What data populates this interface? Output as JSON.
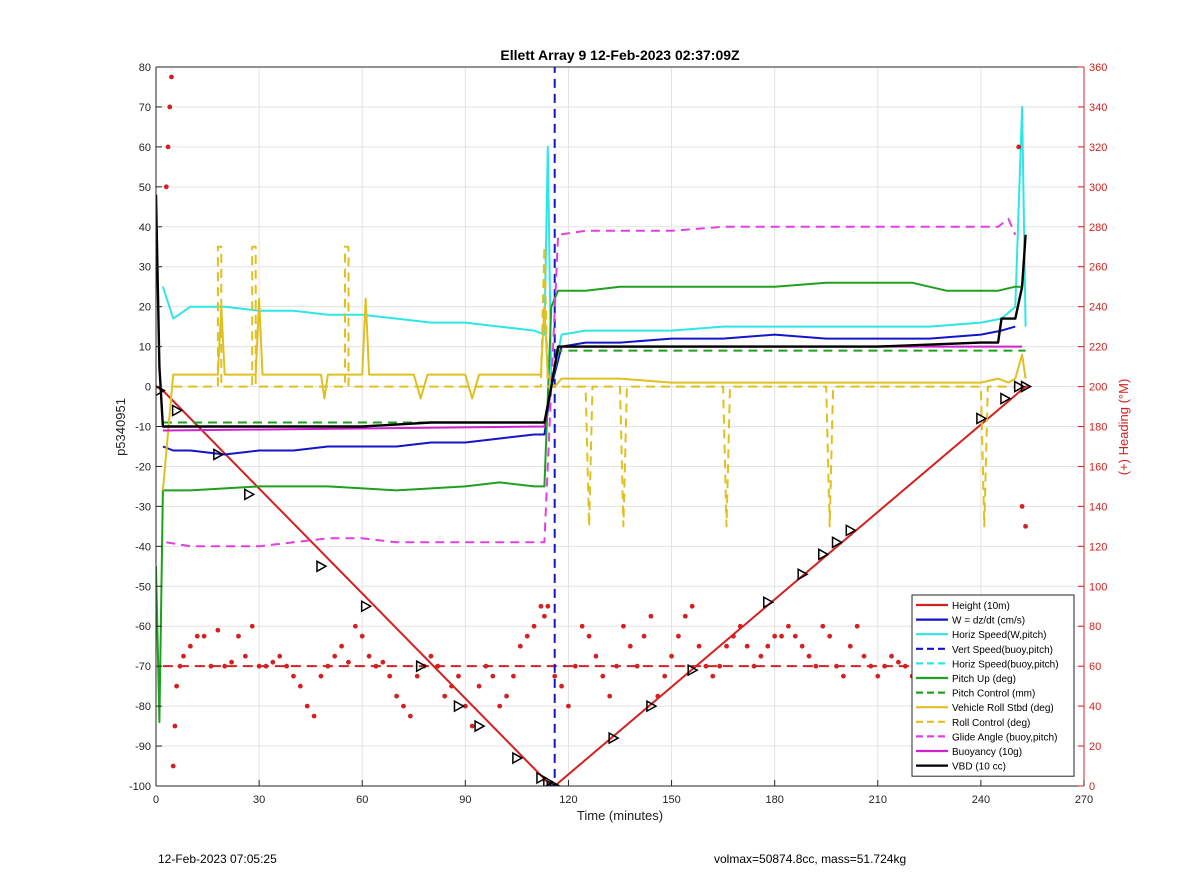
{
  "chart_data": {
    "type": "line",
    "title": "Ellett Array 9 12-Feb-2023 02:37:09Z",
    "xlabel": "Time (minutes)",
    "ylabel_left": "p5340951",
    "ylabel_right": "(+) Heading (°M)",
    "xlim": [
      0,
      270
    ],
    "ylim_left": [
      -100,
      80
    ],
    "ylim_right": [
      0,
      360
    ],
    "xticks": [
      0,
      30,
      60,
      90,
      120,
      150,
      180,
      210,
      240,
      270
    ],
    "yticks_left": [
      -100,
      -90,
      -80,
      -70,
      -60,
      -50,
      -40,
      -30,
      -20,
      -10,
      0,
      10,
      20,
      30,
      40,
      50,
      60,
      70,
      80
    ],
    "yticks_right": [
      0,
      20,
      40,
      60,
      80,
      100,
      120,
      140,
      160,
      180,
      200,
      220,
      240,
      260,
      280,
      300,
      320,
      340,
      360
    ],
    "grid": true,
    "legend_placement": "bottom-right",
    "legend": [
      {
        "label": "Height (10m)",
        "color": "#d42020",
        "style": "solid"
      },
      {
        "label": "W = dz/dt (cm/s)",
        "color": "#1414c8",
        "style": "solid"
      },
      {
        "label": "Horiz Speed(W,pitch)",
        "color": "#2ee6e6",
        "style": "solid"
      },
      {
        "label": "Vert Speed(buoy,pitch)",
        "color": "#1414c8",
        "style": "dashed"
      },
      {
        "label": "Horiz Speed(buoy,pitch)",
        "color": "#2ee6e6",
        "style": "dashed"
      },
      {
        "label": "Pitch Up (deg)",
        "color": "#1fa01f",
        "style": "solid"
      },
      {
        "label": "Pitch Control (mm)",
        "color": "#1fa01f",
        "style": "dashed"
      },
      {
        "label": "Vehicle Roll Stbd (deg)",
        "color": "#e0c020",
        "style": "solid"
      },
      {
        "label": "Roll Control (deg)",
        "color": "#e0c020",
        "style": "dashed"
      },
      {
        "label": "Glide Angle (buoy,pitch)",
        "color": "#e040e0",
        "style": "dashed"
      },
      {
        "label": "Buoyancy (10g)",
        "color": "#d020d0",
        "style": "solid"
      },
      {
        "label": "VBD (10 cc)",
        "color": "#000000",
        "style": "solid"
      }
    ],
    "series": [
      {
        "name": "Height (10m)",
        "axis": "left",
        "color": "#d42020",
        "style": "solid",
        "x": [
          0,
          2,
          115,
          116,
          253,
          254
        ],
        "y": [
          0,
          -1,
          -100,
          -100,
          0,
          0
        ]
      },
      {
        "name": "W = dz/dt (cm/s)",
        "axis": "left",
        "color": "#1414c8",
        "style": "solid",
        "x": [
          2,
          5,
          10,
          20,
          30,
          40,
          50,
          60,
          70,
          80,
          90,
          100,
          110,
          113,
          115,
          118,
          125,
          135,
          150,
          165,
          180,
          195,
          210,
          225,
          240,
          246,
          250
        ],
        "y": [
          -15,
          -16,
          -16,
          -17,
          -16,
          -16,
          -15,
          -15,
          -15,
          -14,
          -14,
          -13,
          -12,
          -12,
          0,
          10,
          11,
          11,
          12,
          12,
          13,
          12,
          12,
          12,
          13,
          14,
          15
        ]
      },
      {
        "name": "Horiz Speed(W,pitch)",
        "axis": "left",
        "color": "#2ee6e6",
        "style": "solid",
        "x": [
          2,
          5,
          10,
          20,
          30,
          40,
          50,
          60,
          70,
          80,
          90,
          100,
          110,
          113,
          114,
          115,
          118,
          125,
          135,
          150,
          165,
          180,
          195,
          210,
          225,
          240,
          246,
          250,
          252,
          253
        ],
        "y": [
          25,
          17,
          20,
          20,
          19,
          19,
          18,
          18,
          17,
          16,
          16,
          15,
          14,
          13,
          60,
          0,
          13,
          14,
          14,
          14,
          15,
          15,
          15,
          15,
          15,
          16,
          17,
          20,
          70,
          15
        ]
      },
      {
        "name": "Vert Speed(buoy,pitch)",
        "axis": "left",
        "color": "#1414c8",
        "style": "dashed",
        "x": [
          114,
          116,
          116
        ],
        "y": [
          -100,
          -100,
          80
        ]
      },
      {
        "name": "Pitch Up (deg)",
        "axis": "left",
        "color": "#1fa01f",
        "style": "solid",
        "x": [
          0,
          1,
          2,
          3,
          10,
          30,
          50,
          70,
          90,
          100,
          110,
          113,
          115,
          117,
          125,
          135,
          150,
          165,
          180,
          195,
          210,
          220,
          230,
          245,
          250,
          252
        ],
        "y": [
          -45,
          -84,
          -26,
          -26,
          -26,
          -25,
          -25,
          -26,
          -25,
          -24,
          -25,
          -25,
          20,
          24,
          24,
          25,
          25,
          25,
          25,
          26,
          26,
          26,
          24,
          24,
          25,
          25
        ]
      },
      {
        "name": "Pitch Control (mm)",
        "axis": "left",
        "color": "#1fa01f",
        "style": "dashed",
        "x": [
          2,
          3,
          113,
          115,
          117,
          250,
          253
        ],
        "y": [
          -9,
          -9,
          -9,
          0,
          9,
          9,
          9
        ]
      },
      {
        "name": "Vehicle Roll Stbd (deg)",
        "axis": "left",
        "color": "#e0c020",
        "style": "solid",
        "x": [
          2,
          5,
          18,
          19,
          20,
          29,
          30,
          31,
          40,
          48,
          49,
          50,
          60,
          61,
          62,
          75,
          77,
          79,
          90,
          92,
          94,
          96,
          105,
          112,
          113,
          114,
          116,
          118,
          125,
          135,
          150,
          165,
          180,
          195,
          210,
          225,
          240,
          245,
          248,
          250,
          252,
          253
        ],
        "y": [
          -26,
          3,
          3,
          20,
          3,
          3,
          22,
          3,
          3,
          3,
          -3,
          3,
          3,
          22,
          3,
          3,
          -3,
          3,
          3,
          -3,
          3,
          3,
          3,
          3,
          20,
          3,
          0,
          2,
          2,
          2,
          1,
          1,
          1,
          1,
          1,
          1,
          1,
          2,
          1,
          2,
          8,
          2
        ]
      },
      {
        "name": "Roll Control (deg)",
        "axis": "left",
        "color": "#e0c020",
        "style": "dashed",
        "x": [
          5,
          18,
          18,
          19,
          19,
          28,
          28,
          29,
          29,
          55,
          55,
          56,
          56,
          112,
          113,
          114,
          118,
          125,
          126,
          127,
          135,
          136,
          137,
          165,
          166,
          167,
          195,
          196,
          197,
          240,
          241,
          242,
          250
        ],
        "y": [
          0,
          0,
          35,
          35,
          0,
          0,
          35,
          35,
          0,
          0,
          35,
          35,
          0,
          0,
          35,
          0,
          0,
          0,
          -35,
          0,
          0,
          -35,
          0,
          0,
          -35,
          0,
          0,
          -35,
          0,
          0,
          -35,
          0,
          0
        ]
      },
      {
        "name": "Glide Angle (buoy,pitch)",
        "axis": "left",
        "color": "#e040e0",
        "style": "dashed",
        "x": [
          3,
          10,
          20,
          30,
          40,
          50,
          60,
          70,
          80,
          90,
          100,
          110,
          113,
          115,
          117,
          125,
          135,
          150,
          165,
          180,
          195,
          210,
          225,
          240,
          245,
          248,
          250
        ],
        "y": [
          -39,
          -40,
          -40,
          -40,
          -39,
          -38,
          -38,
          -39,
          -39,
          -39,
          -39,
          -39,
          -39,
          0,
          38,
          39,
          39,
          39,
          40,
          40,
          40,
          40,
          40,
          40,
          40,
          42,
          38
        ]
      },
      {
        "name": "Buoyancy (10g)",
        "axis": "left",
        "color": "#d020d0",
        "style": "solid",
        "x": [
          2,
          3,
          113,
          115,
          117,
          250,
          252
        ],
        "y": [
          -11,
          -11,
          -10,
          0,
          10,
          10,
          10
        ]
      },
      {
        "name": "VBD (10 cc)",
        "axis": "left",
        "color": "#000000",
        "style": "solid",
        "x": [
          0,
          1,
          2,
          3,
          20,
          40,
          60,
          80,
          100,
          113,
          115,
          117,
          130,
          150,
          180,
          210,
          240,
          245,
          246,
          250,
          252,
          253
        ],
        "y": [
          48,
          5,
          -10,
          -10,
          -10,
          -10,
          -10,
          -9,
          -9,
          -9,
          0,
          10,
          10,
          10,
          10,
          10,
          11,
          11,
          17,
          17,
          25,
          38
        ]
      }
    ],
    "heading_points": {
      "name": "Heading (°M)",
      "axis": "right",
      "color": "#d42020",
      "style": "dots",
      "x": [
        3,
        3.5,
        4,
        4.5,
        5,
        5.5,
        6,
        7,
        8,
        10,
        12,
        14,
        16,
        18,
        20,
        22,
        24,
        26,
        28,
        30,
        32,
        34,
        36,
        38,
        40,
        42,
        44,
        46,
        48,
        50,
        52,
        54,
        56,
        58,
        60,
        62,
        64,
        66,
        68,
        70,
        72,
        74,
        76,
        78,
        80,
        82,
        84,
        86,
        88,
        90,
        92,
        94,
        96,
        98,
        100,
        102,
        104,
        106,
        108,
        110,
        112,
        113,
        114,
        116,
        118,
        120,
        122,
        124,
        126,
        128,
        130,
        132,
        134,
        136,
        138,
        140,
        142,
        144,
        146,
        148,
        150,
        152,
        154,
        156,
        158,
        160,
        162,
        164,
        166,
        168,
        170,
        172,
        174,
        176,
        178,
        180,
        182,
        184,
        186,
        188,
        190,
        192,
        194,
        196,
        198,
        200,
        202,
        204,
        206,
        208,
        210,
        212,
        214,
        216,
        218,
        220,
        222,
        224,
        226,
        228,
        230,
        232,
        234,
        236,
        238,
        240,
        242,
        244,
        246,
        248,
        250,
        251,
        252,
        253
      ],
      "y": [
        300,
        320,
        340,
        355,
        10,
        30,
        50,
        60,
        65,
        70,
        75,
        75,
        60,
        78,
        60,
        62,
        75,
        65,
        80,
        60,
        60,
        62,
        65,
        60,
        55,
        50,
        40,
        35,
        55,
        60,
        65,
        70,
        62,
        80,
        75,
        65,
        60,
        62,
        55,
        45,
        40,
        35,
        55,
        60,
        65,
        60,
        45,
        50,
        55,
        40,
        30,
        50,
        60,
        55,
        40,
        45,
        55,
        70,
        75,
        80,
        90,
        85,
        90,
        55,
        50,
        40,
        60,
        80,
        75,
        65,
        55,
        45,
        60,
        80,
        70,
        60,
        75,
        85,
        45,
        55,
        65,
        75,
        85,
        90,
        70,
        60,
        55,
        60,
        70,
        75,
        80,
        70,
        60,
        65,
        70,
        75,
        75,
        80,
        75,
        70,
        65,
        60,
        80,
        75,
        60,
        55,
        70,
        80,
        65,
        60,
        55,
        60,
        65,
        62,
        60,
        55,
        50,
        58,
        62,
        65,
        68,
        62,
        60,
        65,
        58,
        60,
        62,
        65,
        70,
        80,
        60,
        320,
        140,
        130
      ]
    },
    "heading_reference": {
      "axis": "right",
      "value": 60,
      "color": "#d42020",
      "style": "dashed"
    },
    "markers": {
      "style": "triangle-outline",
      "x": [
        1,
        6,
        18,
        27,
        48,
        61,
        77,
        88,
        94,
        105,
        112,
        114,
        115,
        116,
        133,
        144,
        156,
        178,
        188,
        194,
        198,
        202,
        240,
        247,
        251,
        253
      ],
      "y": [
        -1,
        -6,
        -17,
        -27,
        -45,
        -55,
        -70,
        -80,
        -85,
        -93,
        -98,
        -99,
        -100,
        -100,
        -88,
        -80,
        -71,
        -54,
        -47,
        -42,
        -39,
        -36,
        -8,
        -3,
        0,
        0
      ]
    }
  },
  "footer": {
    "left": "12-Feb-2023 07:05:25",
    "right": "volmax=50874.8cc, mass=51.724kg"
  }
}
